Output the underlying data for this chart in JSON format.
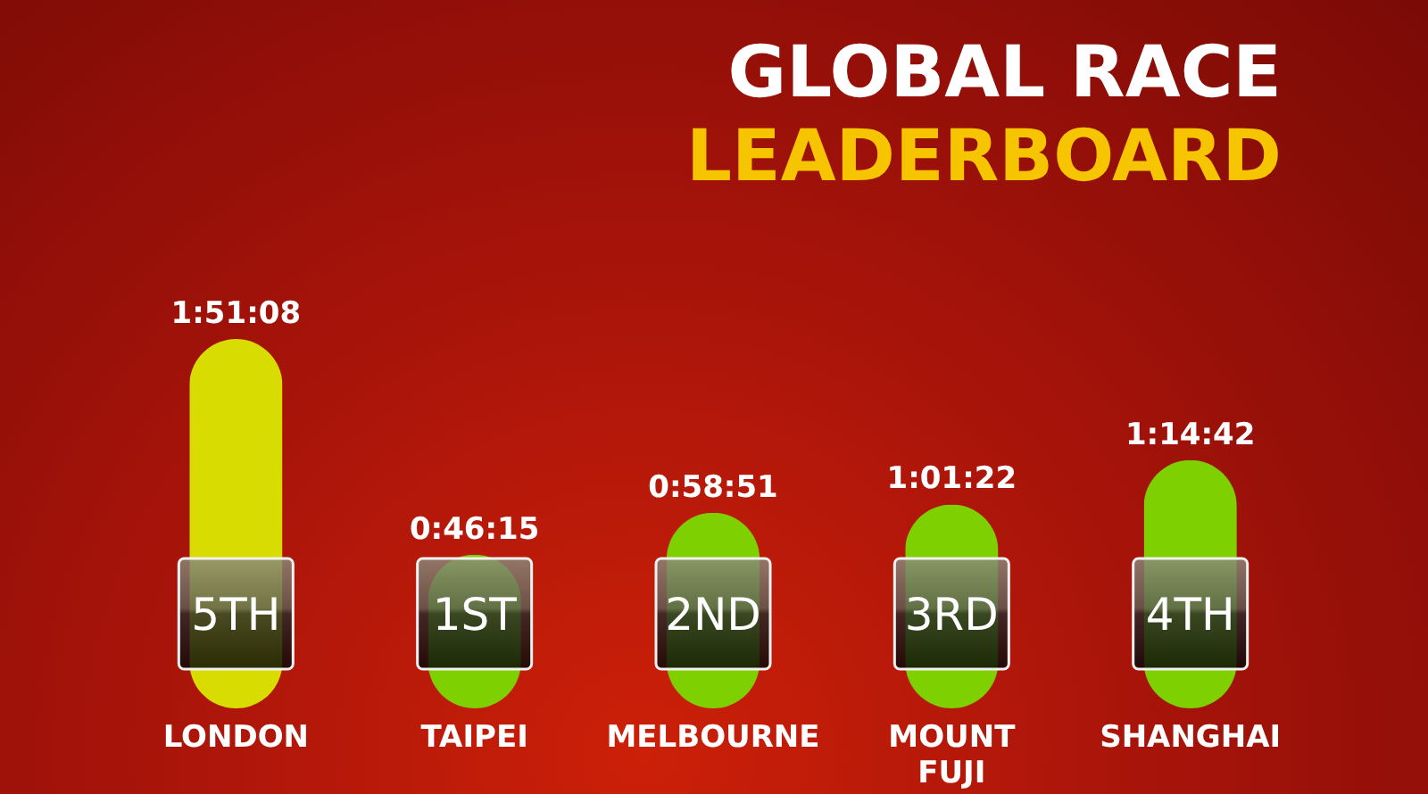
{
  "chart_data": {
    "type": "bar",
    "title": "GLOBAL RACE",
    "subtitle": "LEADERBOARD",
    "categories": [
      "LONDON",
      "TAIPEI",
      "MELBOURNE",
      "MOUNT FUJI",
      "SHANGHAI"
    ],
    "values": [
      6668,
      2775,
      3531,
      3682,
      4482
    ],
    "value_labels": [
      "1:51:08",
      "0:46:15",
      "0:58:51",
      "1:01:22",
      "1:14:42"
    ],
    "colors": [
      "#d8dc00",
      "#7ed000",
      "#7ed000",
      "#7ed000",
      "#7ed000"
    ],
    "annotations": [
      "5TH",
      "1ST",
      "2ND",
      "3RD",
      "4TH"
    ],
    "tick_labels": "x",
    "grid": false,
    "legend": false
  }
}
